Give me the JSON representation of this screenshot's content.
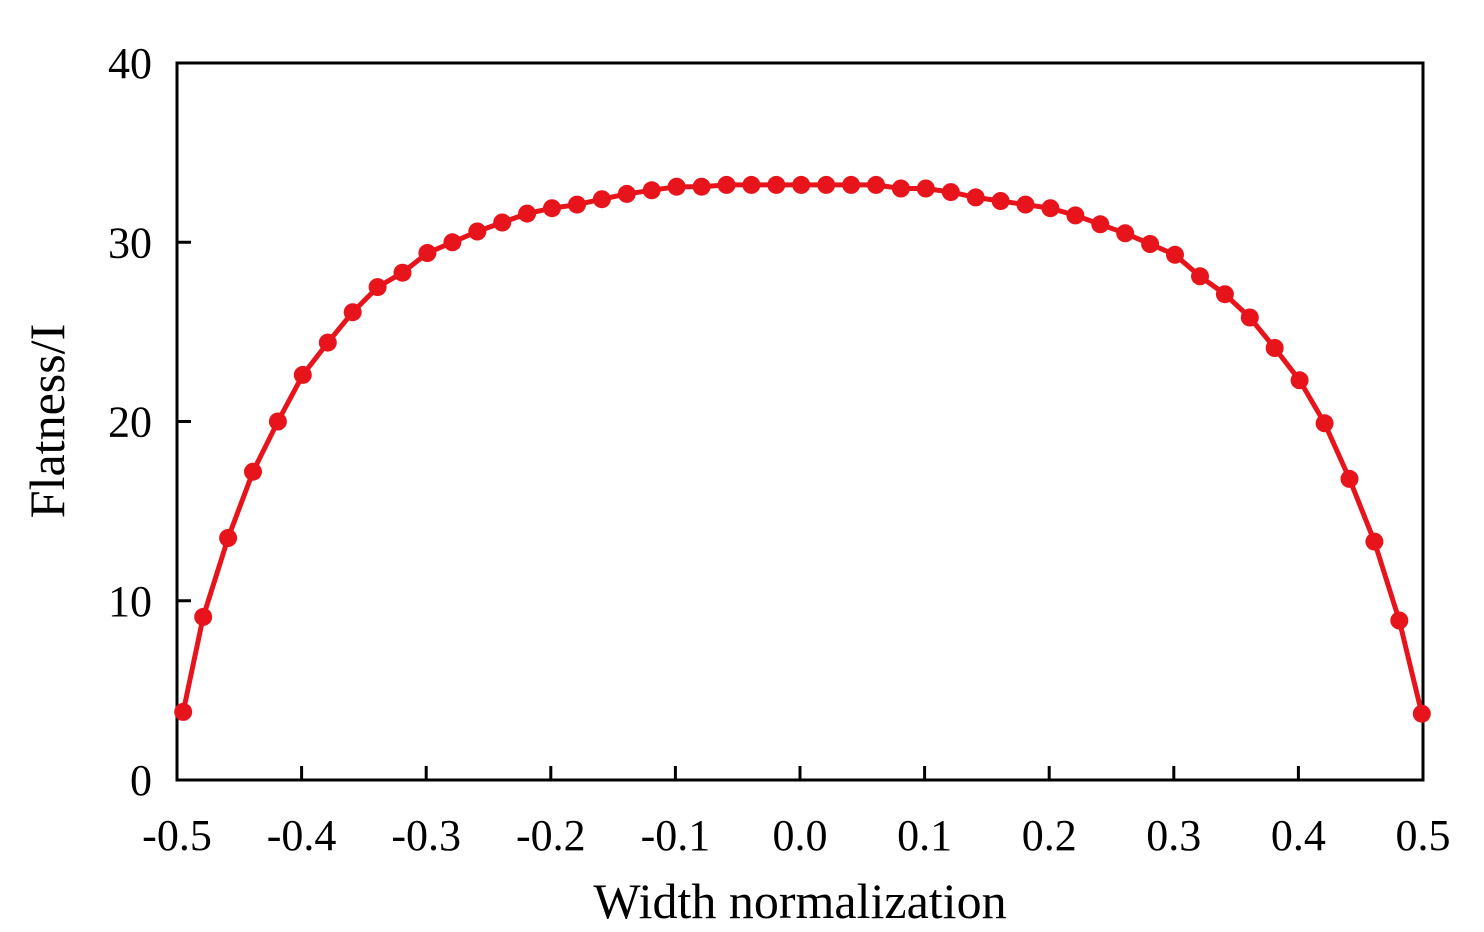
{
  "chart_data": {
    "type": "line",
    "title": "",
    "xlabel": "Width normalization",
    "ylabel": "Flatness/I",
    "xlim": [
      -0.5,
      0.5
    ],
    "ylim": [
      0,
      40
    ],
    "xticks": [
      -0.5,
      -0.4,
      -0.3,
      -0.2,
      -0.1,
      0.0,
      0.1,
      0.2,
      0.3,
      0.4,
      0.5
    ],
    "xtick_labels": [
      "-0.5",
      "-0.4",
      "-0.3",
      "-0.2",
      "-0.1",
      "0.0",
      "0.1",
      "0.2",
      "0.3",
      "0.4",
      "0.5"
    ],
    "yticks": [
      0,
      10,
      20,
      30,
      40
    ],
    "ytick_labels": [
      "0",
      "10",
      "20",
      "30",
      "40"
    ],
    "grid": false,
    "legend": "none",
    "color": "#e8141b",
    "series": [
      {
        "name": "Flatness",
        "marker": "circle",
        "x": [
          -0.495,
          -0.479,
          -0.459,
          -0.439,
          -0.419,
          -0.399,
          -0.379,
          -0.359,
          -0.339,
          -0.319,
          -0.299,
          -0.279,
          -0.259,
          -0.239,
          -0.219,
          -0.199,
          -0.179,
          -0.159,
          -0.139,
          -0.119,
          -0.099,
          -0.079,
          -0.059,
          -0.039,
          -0.019,
          0.001,
          0.021,
          0.041,
          0.061,
          0.081,
          0.101,
          0.121,
          0.141,
          0.161,
          0.181,
          0.201,
          0.221,
          0.241,
          0.261,
          0.281,
          0.301,
          0.321,
          0.341,
          0.361,
          0.381,
          0.401,
          0.421,
          0.441,
          0.461,
          0.481,
          0.499
        ],
        "values": [
          3.8,
          9.1,
          13.5,
          17.2,
          20.0,
          22.6,
          24.4,
          26.1,
          27.5,
          28.3,
          29.4,
          30.0,
          30.6,
          31.1,
          31.6,
          31.9,
          32.1,
          32.4,
          32.7,
          32.9,
          33.1,
          33.1,
          33.2,
          33.2,
          33.2,
          33.2,
          33.2,
          33.2,
          33.2,
          33.0,
          33.0,
          32.8,
          32.5,
          32.3,
          32.1,
          31.9,
          31.5,
          31.0,
          30.5,
          29.9,
          29.3,
          28.1,
          27.1,
          25.8,
          24.1,
          22.3,
          19.9,
          16.8,
          13.3,
          8.9,
          3.7
        ]
      }
    ]
  }
}
